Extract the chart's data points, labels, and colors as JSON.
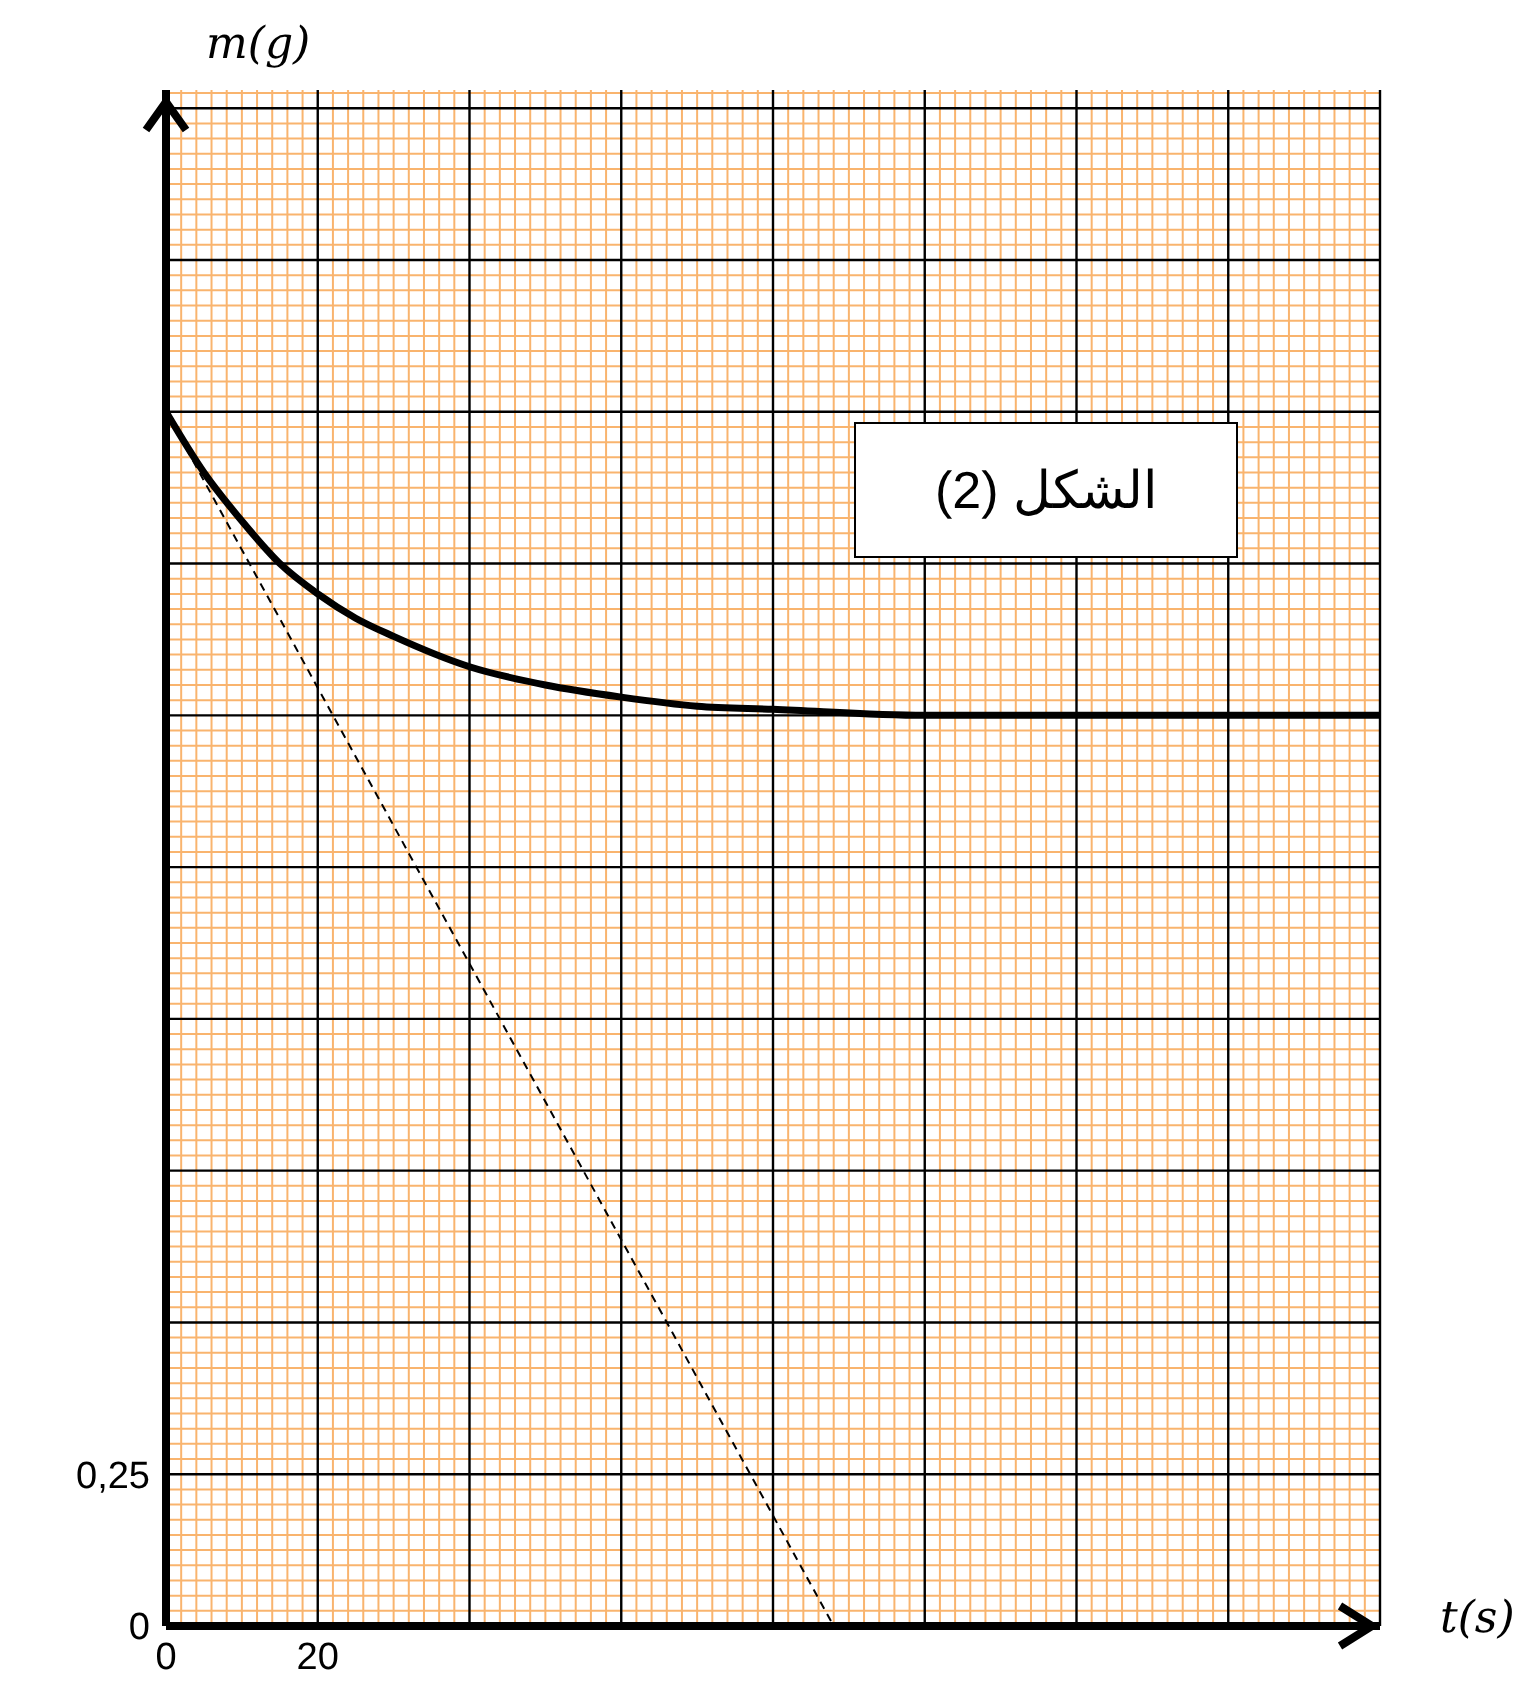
{
  "chart_data": {
    "type": "line",
    "xlabel": "t(s)",
    "ylabel": "m(g)",
    "annotations": [
      "الشكل (2)"
    ],
    "xlim": [
      0,
      160
    ],
    "ylim": [
      0,
      2.53
    ],
    "xticks": [
      0,
      {
        "value": 2,
        "label": null
      },
      {
        "value": 4,
        "label": null
      },
      {
        "value": 6,
        "label": null
      },
      {
        "value": 8,
        "label": null
      },
      {
        "value": 10,
        "label": null
      },
      {
        "value": 12,
        "label": null
      },
      {
        "value": 14,
        "label": null
      },
      {
        "value": 16,
        "label": null
      },
      {
        "value": 18,
        "label": null
      },
      20,
      {
        "value": 22,
        "label": null
      },
      {
        "value": 24,
        "label": null
      },
      {
        "value": 26,
        "label": null
      },
      {
        "value": 28,
        "label": null
      },
      {
        "value": 30,
        "label": null
      },
      {
        "value": 32,
        "label": null
      },
      {
        "value": 34,
        "label": null
      },
      {
        "value": 36,
        "label": null
      },
      {
        "value": 38,
        "label": null
      },
      {
        "value": 40,
        "label": null
      },
      {
        "value": 42,
        "label": null
      },
      {
        "value": 44,
        "label": null
      },
      {
        "value": 46,
        "label": null
      },
      {
        "value": 48,
        "label": null
      },
      {
        "value": 50,
        "label": null
      },
      {
        "value": 52,
        "label": null
      },
      {
        "value": 54,
        "label": null
      },
      {
        "value": 56,
        "label": null
      },
      {
        "value": 58,
        "label": null
      },
      {
        "value": 60,
        "label": null
      },
      {
        "value": 62,
        "label": null
      },
      {
        "value": 64,
        "label": null
      },
      {
        "value": 66,
        "label": null
      },
      {
        "value": 68,
        "label": null
      },
      {
        "value": 70,
        "label": null
      },
      {
        "value": 72,
        "label": null
      },
      {
        "value": 74,
        "label": null
      },
      {
        "value": 76,
        "label": null
      },
      {
        "value": 78,
        "label": null
      },
      {
        "value": 80,
        "label": null
      },
      {
        "value": 82,
        "label": null
      },
      {
        "value": 84,
        "label": null
      },
      {
        "value": 86,
        "label": null
      },
      {
        "value": 88,
        "label": null
      },
      {
        "value": 90,
        "label": null
      },
      {
        "value": 92,
        "label": null
      },
      {
        "value": 94,
        "label": null
      },
      {
        "value": 96,
        "label": null
      },
      {
        "value": 98,
        "label": null
      },
      {
        "value": 100,
        "label": null
      },
      {
        "value": 102,
        "label": null
      },
      {
        "value": 104,
        "label": null
      },
      {
        "value": 106,
        "label": null
      },
      {
        "value": 108,
        "label": null
      },
      {
        "value": 110,
        "label": null
      },
      {
        "value": 112,
        "label": null
      },
      {
        "value": 114,
        "label": null
      },
      {
        "value": 116,
        "label": null
      },
      {
        "value": 118,
        "label": null
      },
      {
        "value": 120,
        "label": null
      },
      {
        "value": 122,
        "label": null
      },
      {
        "value": 124,
        "label": null
      },
      {
        "value": 126,
        "label": null
      },
      {
        "value": 128,
        "label": null
      },
      {
        "value": 130,
        "label": null
      },
      {
        "value": 132,
        "label": null
      },
      {
        "value": 134,
        "label": null
      },
      {
        "value": 136,
        "label": null
      },
      {
        "value": 138,
        "label": null
      },
      {
        "value": 140,
        "label": null
      },
      {
        "value": 142,
        "label": null
      },
      {
        "value": 144,
        "label": null
      },
      {
        "value": 146,
        "label": null
      },
      {
        "value": 148,
        "label": null
      },
      {
        "value": 150,
        "label": null
      },
      {
        "value": 152,
        "label": null
      },
      {
        "value": 154,
        "label": null
      },
      {
        "value": 156,
        "label": null
      },
      {
        "value": 158,
        "label": null
      },
      {
        "value": 160,
        "label": null
      }
    ],
    "yticks": [
      0,
      {
        "value": 0.025,
        "label": null
      },
      {
        "value": 0.05,
        "label": null
      },
      {
        "value": 0.075,
        "label": null
      },
      {
        "value": 0.1,
        "label": null
      },
      {
        "value": 0.125,
        "label": null
      },
      {
        "value": 0.15,
        "label": null
      },
      {
        "value": 0.175,
        "label": null
      },
      {
        "value": 0.2,
        "label": null
      },
      {
        "value": 0.225,
        "label": null
      },
      {
        "value": 0.25,
        "label": "0,25"
      },
      {
        "value": 0.275,
        "label": null
      },
      {
        "value": 0.3,
        "label": null
      },
      {
        "value": 0.325,
        "label": null
      },
      {
        "value": 0.35,
        "label": null
      },
      {
        "value": 0.375,
        "label": null
      },
      {
        "value": 0.4,
        "label": null
      },
      {
        "value": 0.425,
        "label": null
      },
      {
        "value": 0.45,
        "label": null
      },
      {
        "value": 0.475,
        "label": null
      },
      {
        "value": 0.5,
        "label": null
      },
      {
        "value": 0.525,
        "label": null
      },
      {
        "value": 0.55,
        "label": null
      },
      {
        "value": 0.575,
        "label": null
      },
      {
        "value": 0.6,
        "label": null
      },
      {
        "value": 0.625,
        "label": null
      },
      {
        "value": 0.65,
        "label": null
      },
      {
        "value": 0.675,
        "label": null
      },
      {
        "value": 0.7,
        "label": null
      },
      {
        "value": 0.725,
        "label": null
      },
      {
        "value": 0.75,
        "label": null
      },
      {
        "value": 0.775,
        "label": null
      },
      {
        "value": 0.8,
        "label": null
      },
      {
        "value": 0.825,
        "label": null
      },
      {
        "value": 0.85,
        "label": null
      },
      {
        "value": 0.875,
        "label": null
      },
      {
        "value": 0.9,
        "label": null
      },
      {
        "value": 0.925,
        "label": null
      },
      {
        "value": 0.95,
        "label": null
      },
      {
        "value": 0.975,
        "label": null
      },
      {
        "value": 1,
        "label": null
      },
      {
        "value": 1.025,
        "label": null
      },
      {
        "value": 1.05,
        "label": null
      },
      {
        "value": 1.075,
        "label": null
      },
      {
        "value": 1.1,
        "label": null
      },
      {
        "value": 1.125,
        "label": null
      },
      {
        "value": 1.15,
        "label": null
      },
      {
        "value": 1.175,
        "label": null
      },
      {
        "value": 1.2,
        "label": null
      },
      {
        "value": 1.225,
        "label": null
      },
      {
        "value": 1.25,
        "label": null
      },
      {
        "value": 1.275,
        "label": null
      },
      {
        "value": 1.3,
        "label": null
      },
      {
        "value": 1.325,
        "label": null
      },
      {
        "value": 1.35,
        "label": null
      },
      {
        "value": 1.375,
        "label": null
      },
      {
        "value": 1.4,
        "label": null
      },
      {
        "value": 1.425,
        "label": null
      },
      {
        "value": 1.45,
        "label": null
      },
      {
        "value": 1.475,
        "label": null
      },
      {
        "value": 1.5,
        "label": null
      },
      {
        "value": 1.525,
        "label": null
      },
      {
        "value": 1.55,
        "label": null
      },
      {
        "value": 1.575,
        "label": null
      },
      {
        "value": 1.6,
        "label": null
      },
      {
        "value": 1.625,
        "label": null
      },
      {
        "value": 1.65,
        "label": null
      },
      {
        "value": 1.675,
        "label": null
      },
      {
        "value": 1.7,
        "label": null
      },
      {
        "value": 1.725,
        "label": null
      },
      {
        "value": 1.75,
        "label": null
      },
      {
        "value": 1.775,
        "label": null
      },
      {
        "value": 1.8,
        "label": null
      },
      {
        "value": 1.825,
        "label": null
      },
      {
        "value": 1.85,
        "label": null
      },
      {
        "value": 1.875,
        "label": null
      },
      {
        "value": 1.9,
        "label": null
      },
      {
        "value": 1.925,
        "label": null
      },
      {
        "value": 1.95,
        "label": null
      },
      {
        "value": 1.975,
        "label": null
      },
      {
        "value": 2,
        "label": null
      },
      {
        "value": 2.025,
        "label": null
      },
      {
        "value": 2.05,
        "label": null
      },
      {
        "value": 2.075,
        "label": null
      },
      {
        "value": 2.1,
        "label": null
      },
      {
        "value": 2.125,
        "label": null
      },
      {
        "value": 2.15,
        "label": null
      },
      {
        "value": 2.175,
        "label": null
      },
      {
        "value": 2.2,
        "label": null
      },
      {
        "value": 2.225,
        "label": null
      },
      {
        "value": 2.25,
        "label": null
      },
      {
        "value": 2.275,
        "label": null
      },
      {
        "value": 2.3,
        "label": null
      },
      {
        "value": 2.325,
        "label": null
      },
      {
        "value": 2.35,
        "label": null
      },
      {
        "value": 2.375,
        "label": null
      },
      {
        "value": 2.4,
        "label": null
      },
      {
        "value": 2.425,
        "label": null
      },
      {
        "value": 2.45,
        "label": null
      },
      {
        "value": 2.475,
        "label": null
      },
      {
        "value": 2.5,
        "label": null
      },
      {
        "value": 2.525,
        "label": null
      }
    ],
    "grid": true,
    "marker": "none",
    "series": [
      {
        "color": "#000000",
        "x": [
          0,
          5,
          10,
          15,
          20,
          25,
          30,
          40,
          50,
          60,
          70,
          80,
          100,
          120,
          140,
          160
        ],
        "values": [
          2.0,
          1.9,
          1.82,
          1.75,
          1.7,
          1.66,
          1.63,
          1.58,
          1.55,
          1.53,
          1.515,
          1.51,
          1.5,
          1.5,
          1.5,
          1.5
        ]
      },
      {
        "color": "#000000",
        "line_style": "dashed",
        "x": [
          0,
          88
        ],
        "values": [
          2.0,
          0
        ]
      }
    ]
  }
}
